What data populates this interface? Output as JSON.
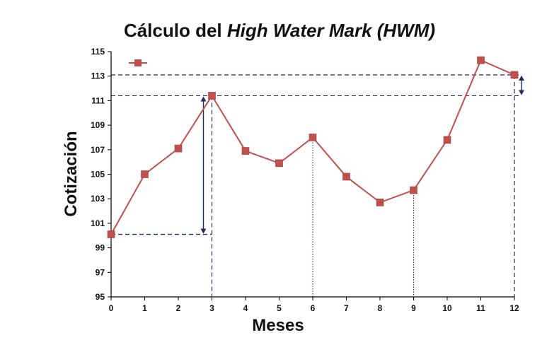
{
  "title": {
    "prefix": "Cálculo del ",
    "italic": "High Water Mark (HWM)"
  },
  "colors": {
    "series": "#c0504d",
    "marker": "#c0504d",
    "guides": "#1f2a60",
    "axis": "#000000"
  },
  "chart_data": {
    "type": "line",
    "title": "Cálculo del High Water Mark (HWM)",
    "xlabel": "Meses",
    "ylabel": "Cotización",
    "x": [
      0,
      1,
      2,
      3,
      4,
      5,
      6,
      7,
      8,
      9,
      10,
      11,
      12
    ],
    "xticks": [
      "0",
      "1",
      "2",
      "3",
      "4",
      "5",
      "6",
      "7",
      "8",
      "9",
      "10",
      "11",
      "12"
    ],
    "yticks": [
      "95",
      "97",
      "99",
      "101",
      "103",
      "105",
      "107",
      "109",
      "111",
      "113",
      "115"
    ],
    "xlim": [
      0,
      12
    ],
    "ylim": [
      95,
      115
    ],
    "grid": false,
    "legend": "top-left",
    "series": [
      {
        "values": [
          100.1,
          105.0,
          107.1,
          111.4,
          106.9,
          105.9,
          108.0,
          104.8,
          102.7,
          103.7,
          107.8,
          114.3,
          113.1
        ],
        "marker": "square",
        "color": "#c0504d"
      }
    ],
    "annotations": {
      "hwm_levels": [
        111.4,
        113.1
      ],
      "dashed_verticals_at_x": [
        3,
        12
      ],
      "dotted_verticals_at_x": [
        6,
        9
      ],
      "double_arrows": [
        {
          "x": 3,
          "from": 100.1,
          "to": 111.4
        },
        {
          "x": 12,
          "from": 111.4,
          "to": 113.1
        }
      ]
    }
  }
}
